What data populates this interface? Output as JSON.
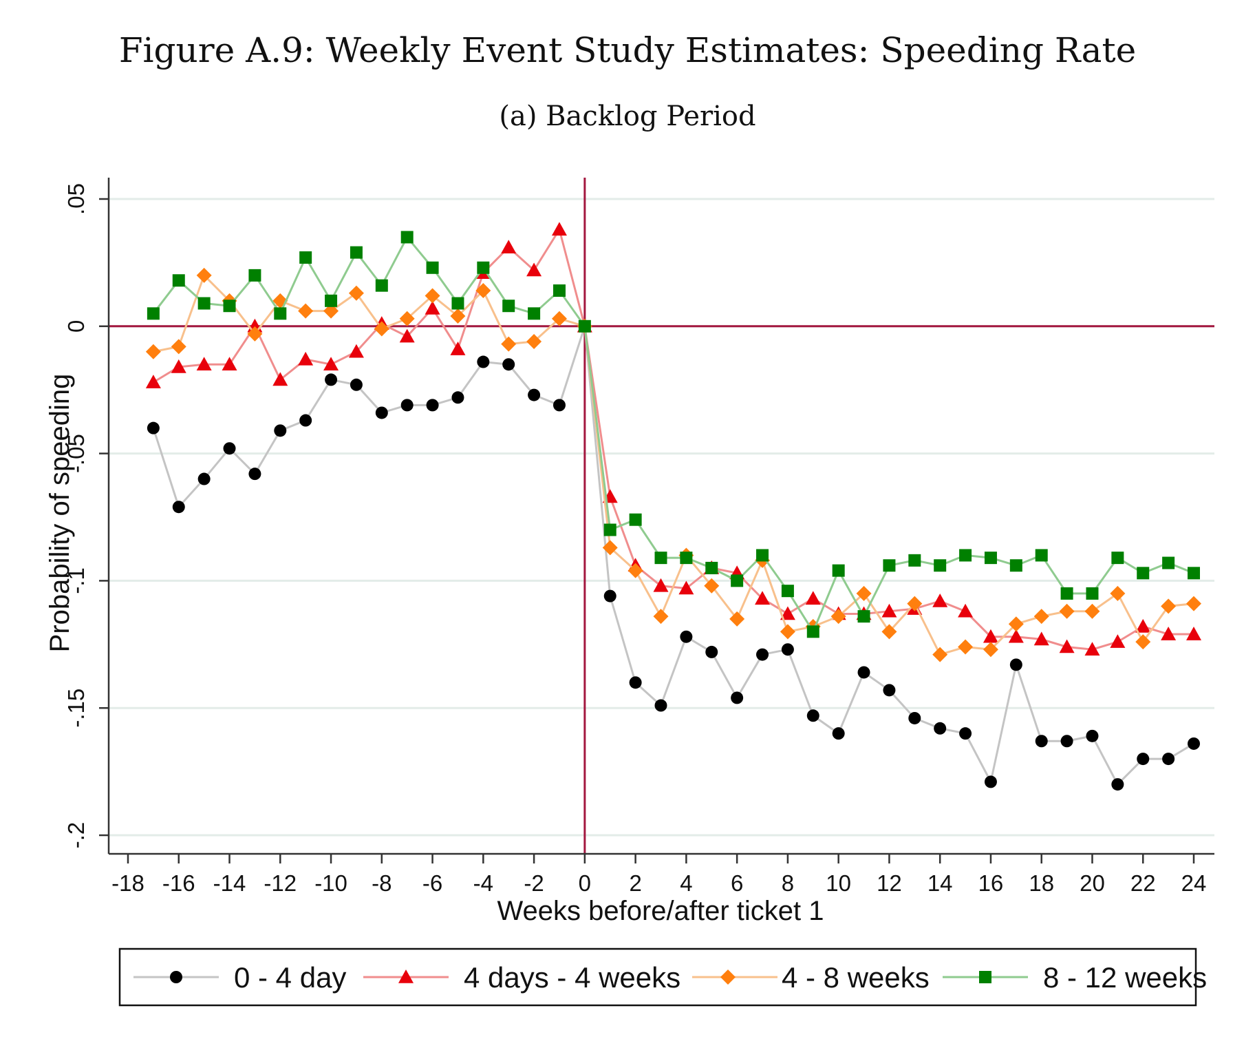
{
  "figure": {
    "title": "Figure A.9: Weekly Event Study Estimates: Speeding Rate",
    "subtitle": "(a) Backlog Period"
  },
  "colors": {
    "gridline": "#e3ece8",
    "reference_line": "#a3173f",
    "axis": "#333333"
  },
  "chart_data": {
    "type": "line",
    "xlabel": "Weeks before/after ticket 1",
    "ylabel": "Probability of speeding",
    "xlim": [
      -18,
      24
    ],
    "ylim": [
      -0.2,
      0.05
    ],
    "x_ticks": [
      -18,
      -16,
      -14,
      -12,
      -10,
      -8,
      -6,
      -4,
      -2,
      0,
      2,
      4,
      6,
      8,
      10,
      12,
      14,
      16,
      18,
      20,
      22,
      24
    ],
    "x_tick_labels": [
      "-18",
      "-16",
      "-14",
      "-12",
      "-10",
      "-8",
      "-6",
      "-4",
      "-2",
      "0",
      "2",
      "4",
      "6",
      "8",
      "10",
      "12",
      "14",
      "16",
      "18",
      "20",
      "22",
      "24"
    ],
    "y_ticks": [
      0.05,
      0,
      -0.05,
      -0.1,
      -0.15,
      -0.2
    ],
    "y_tick_labels": [
      ".05",
      "0",
      "-.05",
      "-.1",
      "-.15",
      "-.2"
    ],
    "grid": true,
    "reference_lines": {
      "x": 0,
      "y": 0
    },
    "legend_position": "bottom",
    "x": [
      -17,
      -16,
      -15,
      -14,
      -13,
      -12,
      -11,
      -10,
      -9,
      -8,
      -7,
      -6,
      -5,
      -4,
      -3,
      -2,
      -1,
      0,
      1,
      2,
      3,
      4,
      5,
      6,
      7,
      8,
      9,
      10,
      11,
      12,
      13,
      14,
      15,
      16,
      17,
      18,
      19,
      20,
      21,
      22,
      23,
      24
    ],
    "series": [
      {
        "name": "0 - 4 day",
        "marker": "circle",
        "marker_color": "#000000",
        "line_color": "#c4c4c4",
        "values": [
          -0.04,
          -0.071,
          -0.06,
          -0.048,
          -0.058,
          -0.041,
          -0.037,
          -0.021,
          -0.023,
          -0.034,
          -0.031,
          -0.031,
          -0.028,
          -0.014,
          -0.015,
          -0.027,
          -0.031,
          0.0,
          -0.106,
          -0.14,
          -0.149,
          -0.122,
          -0.128,
          -0.146,
          -0.129,
          -0.127,
          -0.153,
          -0.16,
          -0.136,
          -0.143,
          -0.154,
          -0.158,
          -0.16,
          -0.179,
          -0.133,
          -0.163,
          -0.163,
          -0.161,
          -0.18,
          -0.17,
          -0.17,
          -0.164
        ]
      },
      {
        "name": "4 days - 4 weeks",
        "marker": "triangle",
        "marker_color": "#e8000b",
        "line_color": "#f08d8d",
        "values": [
          -0.022,
          -0.016,
          -0.015,
          -0.015,
          0.0,
          -0.021,
          -0.013,
          -0.015,
          -0.01,
          0.001,
          -0.004,
          0.007,
          -0.009,
          0.021,
          0.031,
          0.022,
          0.038,
          0.0,
          -0.067,
          -0.094,
          -0.102,
          -0.103,
          -0.095,
          -0.097,
          -0.107,
          -0.113,
          -0.107,
          -0.113,
          -0.113,
          -0.112,
          -0.111,
          -0.108,
          -0.112,
          -0.122,
          -0.122,
          -0.123,
          -0.126,
          -0.127,
          -0.124,
          -0.118,
          -0.121,
          -0.121
        ]
      },
      {
        "name": "4 - 8 weeks",
        "marker": "diamond",
        "marker_color": "#ff7f0e",
        "line_color": "#f8c08c",
        "values": [
          -0.01,
          -0.008,
          0.02,
          0.01,
          -0.003,
          0.01,
          0.006,
          0.006,
          0.013,
          -0.001,
          0.003,
          0.012,
          0.004,
          0.014,
          -0.007,
          -0.006,
          0.003,
          0.0,
          -0.087,
          -0.096,
          -0.114,
          -0.09,
          -0.102,
          -0.115,
          -0.092,
          -0.12,
          -0.118,
          -0.114,
          -0.105,
          -0.12,
          -0.109,
          -0.129,
          -0.126,
          -0.127,
          -0.117,
          -0.114,
          -0.112,
          -0.112,
          -0.105,
          -0.124,
          -0.11,
          -0.109
        ]
      },
      {
        "name": "8 - 12 weeks",
        "marker": "square",
        "marker_color": "#008000",
        "line_color": "#8fcb8f",
        "values": [
          0.005,
          0.018,
          0.009,
          0.008,
          0.02,
          0.005,
          0.027,
          0.01,
          0.029,
          0.016,
          0.035,
          0.023,
          0.009,
          0.023,
          0.008,
          0.005,
          0.014,
          0.0,
          -0.08,
          -0.076,
          -0.091,
          -0.091,
          -0.095,
          -0.1,
          -0.09,
          -0.104,
          -0.12,
          -0.096,
          -0.114,
          -0.094,
          -0.092,
          -0.094,
          -0.09,
          -0.091,
          -0.094,
          -0.09,
          -0.105,
          -0.105,
          -0.091,
          -0.097,
          -0.093,
          -0.097
        ]
      }
    ]
  }
}
